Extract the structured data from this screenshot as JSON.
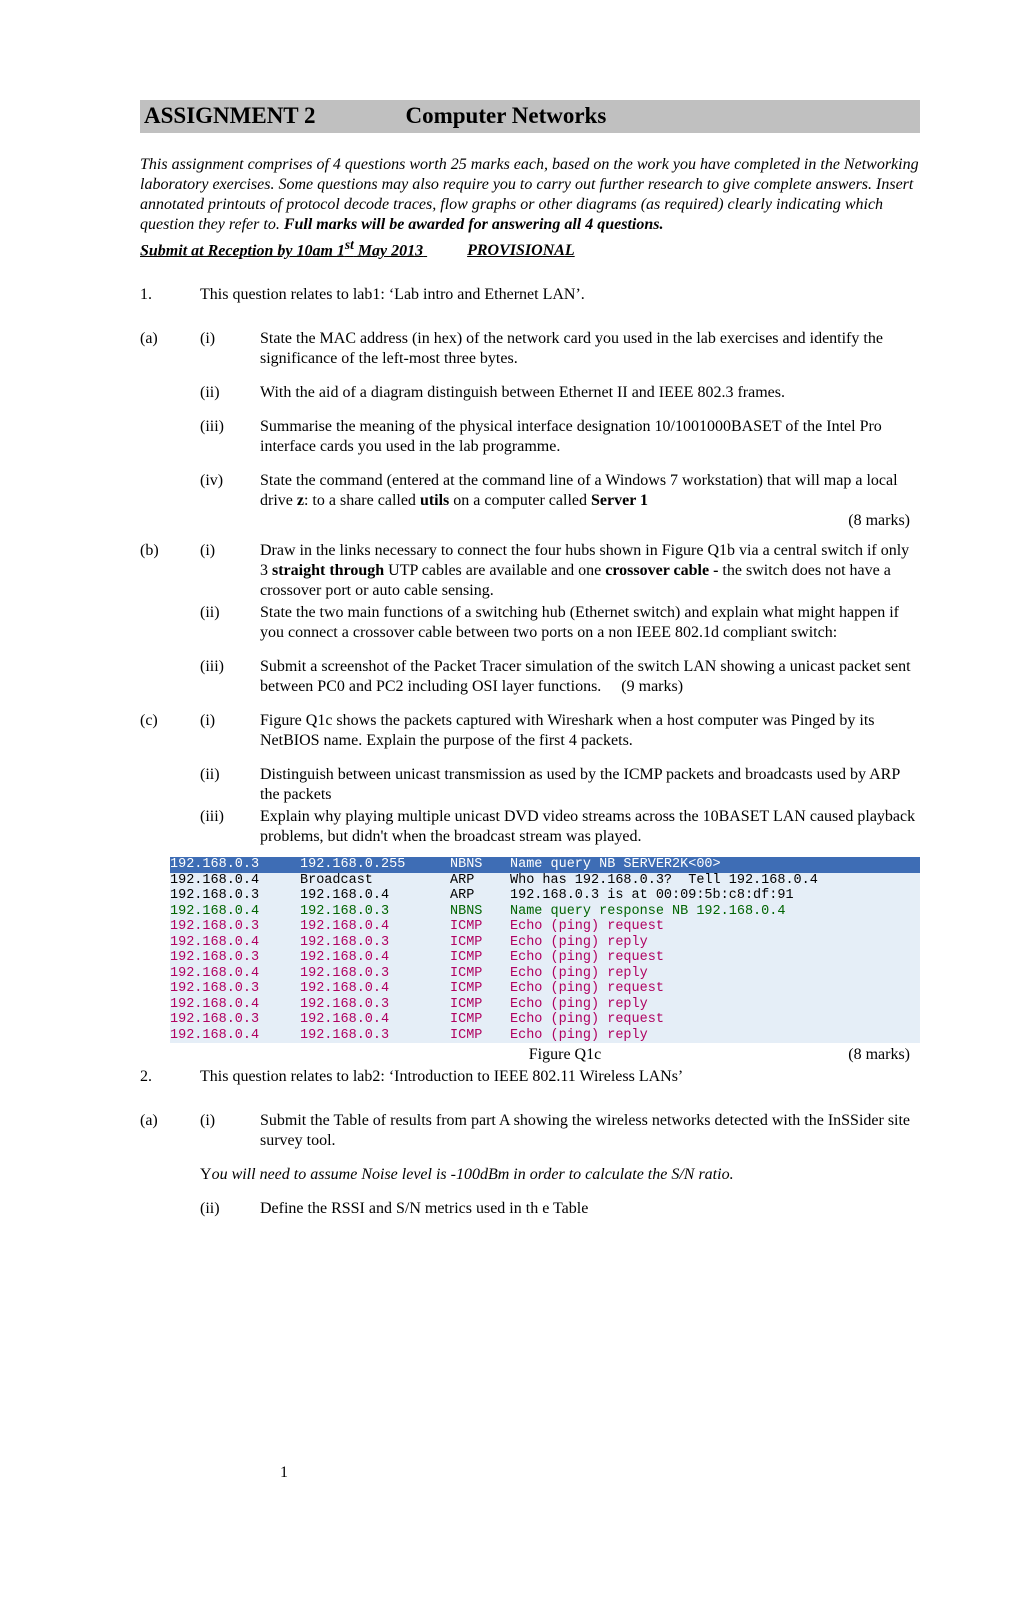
{
  "title": {
    "left": "ASSIGNMENT 2",
    "right": "Computer Networks"
  },
  "intro": {
    "italic": "This assignment comprises of 4 questions worth 25 marks each, based on the work you have completed in the Networking laboratory exercises. Some questions may also require you to carry out further research to give complete answers. Insert annotated printouts of protocol decode traces, flow graphs or other diagrams (as required) clearly indicating which question they refer to. ",
    "bold_tail": "Full marks will be awarded for answering all 4 questions."
  },
  "submit": {
    "main": "Submit at Reception by 10am 1",
    "sup": "st",
    "tail": " May 2013",
    "prov": "PROVISIONAL"
  },
  "q1": {
    "num": "1.",
    "stem": "This question relates to lab1: ‘Lab intro and Ethernet LAN’.",
    "a": {
      "letter": "(a)",
      "i": {
        "r": "(i)",
        "t": "State the MAC address (in hex) of the network card you used in the lab exercises and identify the significance of the left-most  three bytes."
      },
      "ii": {
        "r": "(ii)",
        "t": "With the aid of a diagram distinguish between Ethernet II and IEEE 802.3 frames."
      },
      "iii": {
        "r": "(iii)",
        "t": "Summarise the meaning of the physical interface designation 10/1001000BASET of the Intel Pro interface cards you used in the lab programme."
      },
      "iv": {
        "r": "(iv)",
        "pre": "State the command (entered at the command line of  a Windows 7 workstation) that will map a local drive ",
        "b1": "z",
        "mid1": ": to a share called ",
        "b2": "utils",
        "mid2": " on a computer called ",
        "b3": "Server 1"
      },
      "marks": "(8 marks)"
    },
    "b": {
      "letter": "(b)",
      "i": {
        "r": "(i)",
        "pre": "Draw in the links necessary to connect the four hubs shown in Figure Q1b via a central switch if only 3 ",
        "b1": "straight through",
        "mid1": " UTP cables are available and one ",
        "b2": "crossover cable - ",
        "tail": "the switch does not have a crossover port or auto cable sensing."
      },
      "ii": {
        "r": "(ii)",
        "t": "State the two main functions of a switching hub (Ethernet switch) and explain  what might happen if you connect a crossover cable between two ports on a non IEEE 802.1d compliant switch:"
      },
      "iii": {
        "r": "(iii)",
        "t": "Submit a screenshot of the Packet Tracer simulation of  the  switch LAN showing a unicast packet sent between PC0 and PC2 including OSI layer functions.",
        "marks": "(9 marks)"
      }
    },
    "c": {
      "letter": "(c)",
      "i": {
        "r": "(i)",
        "t": "Figure Q1c shows the packets captured with Wireshark when a host computer was Pinged by its NetBIOS name. Explain the purpose of the first 4 packets."
      },
      "ii": {
        "r": "(ii)",
        "t": "Distinguish between unicast transmission as used by the ICMP packets and broadcasts used by ARP the packets"
      },
      "iii": {
        "r": "(iii)",
        "t": "Explain why playing multiple unicast DVD video streams across the 10BASET LAN caused  playback problems, but didn't when the broadcast stream was played."
      }
    }
  },
  "capture": {
    "rows": [
      {
        "src": "192.168.0.3",
        "dst": "192.168.0.255",
        "proto": "NBNS",
        "info": "Name query NB SERVER2K<00>",
        "cls": "hl"
      },
      {
        "src": "192.168.0.4",
        "dst": "Broadcast",
        "proto": "ARP",
        "info": "Who has 192.168.0.3?  Tell 192.168.0.4",
        "cls": ""
      },
      {
        "src": "192.168.0.3",
        "dst": "192.168.0.4",
        "proto": "ARP",
        "info": "192.168.0.3 is at 00:09:5b:c8:df:91",
        "cls": ""
      },
      {
        "src": "192.168.0.4",
        "dst": "192.168.0.3",
        "proto": "NBNS",
        "info": "Name query response NB 192.168.0.4",
        "cls": "green"
      },
      {
        "src": "192.168.0.3",
        "dst": "192.168.0.4",
        "proto": "ICMP",
        "info": "Echo (ping) request",
        "cls": "pink"
      },
      {
        "src": "192.168.0.4",
        "dst": "192.168.0.3",
        "proto": "ICMP",
        "info": "Echo (ping) reply",
        "cls": "pink"
      },
      {
        "src": "192.168.0.3",
        "dst": "192.168.0.4",
        "proto": "ICMP",
        "info": "Echo (ping) request",
        "cls": "pink"
      },
      {
        "src": "192.168.0.4",
        "dst": "192.168.0.3",
        "proto": "ICMP",
        "info": "Echo (ping) reply",
        "cls": "pink"
      },
      {
        "src": "192.168.0.3",
        "dst": "192.168.0.4",
        "proto": "ICMP",
        "info": "Echo (ping) request",
        "cls": "pink"
      },
      {
        "src": "192.168.0.4",
        "dst": "192.168.0.3",
        "proto": "ICMP",
        "info": "Echo (ping) reply",
        "cls": "pink"
      },
      {
        "src": "192.168.0.3",
        "dst": "192.168.0.4",
        "proto": "ICMP",
        "info": "Echo (ping) request",
        "cls": "pink"
      },
      {
        "src": "192.168.0.4",
        "dst": "192.168.0.3",
        "proto": "ICMP",
        "info": "Echo (ping) reply",
        "cls": "pink"
      }
    ]
  },
  "figline": {
    "label": "Figure Q1c",
    "marks": "(8 marks)"
  },
  "q2": {
    "num": "2.",
    "stem": "This question relates to lab2: ‘Introduction to IEEE 802.11 Wireless LANs’",
    "a": {
      "letter": "(a)",
      "i": {
        "r": "(i)",
        "t": "Submit the Table of results from part A showing the wireless networks detected with the InSSider site survey tool."
      },
      "note_pre": "Y",
      "note": "ou will need to assume Noise level is -100dBm in order to calculate the S/N ratio.",
      "ii": {
        "r": "(ii)",
        "t": "Define the RSSI and S/N metrics used in th e Table"
      }
    }
  },
  "pagenum": "1"
}
